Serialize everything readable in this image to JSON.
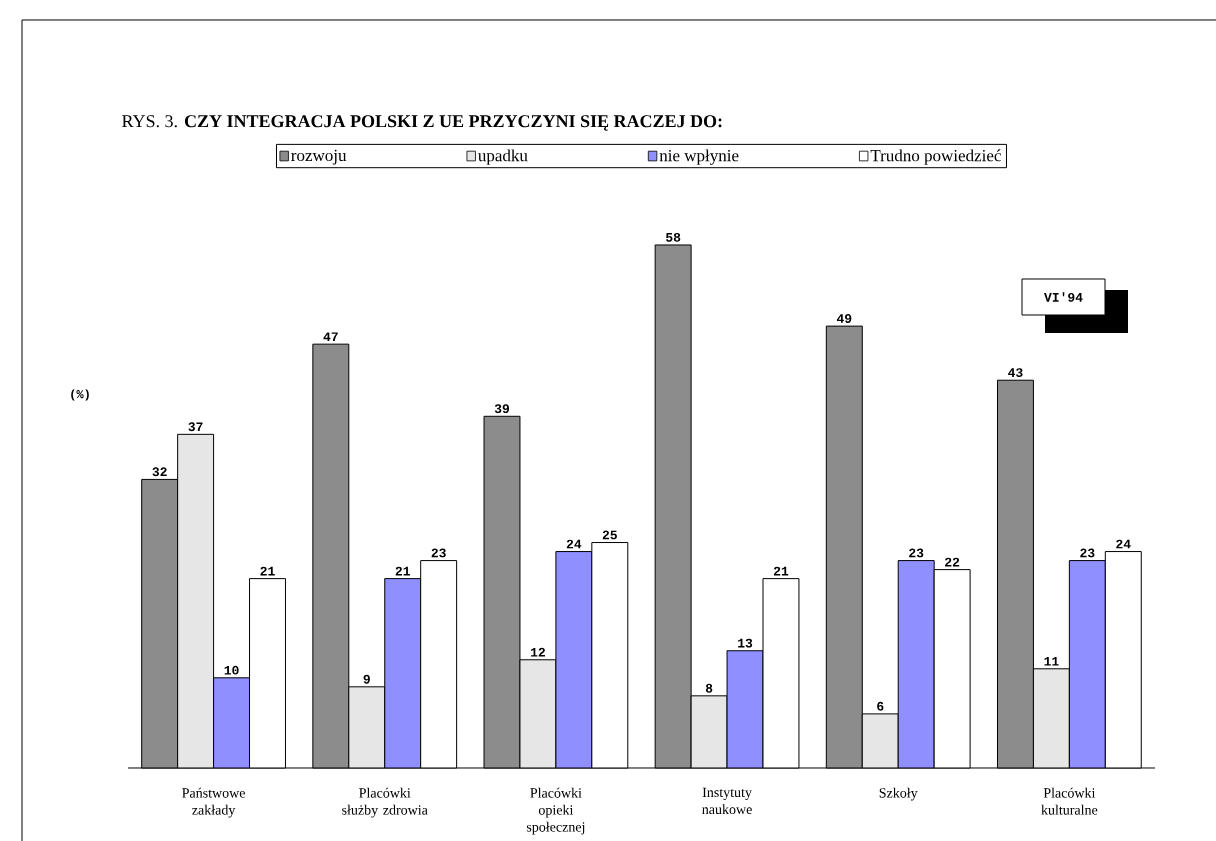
{
  "chart_data": {
    "type": "bar",
    "title": "RYS. 3. **CZY INTEGRACJA POLSKI Z UE PRZYCZYNI SIĘ RACZEJ DO:**",
    "ylabel": "(%)",
    "categories": [
      "Państwowe zakłady",
      "Placówki służby zdrowia",
      "Placówki opieki społecznej",
      "Instytuty naukowe",
      "Szkoły",
      "Placówki kulturalne"
    ],
    "series": [
      {
        "name": "rozwoju",
        "color": "#8c8c8c",
        "values": [
          32,
          47,
          39,
          58,
          49,
          43
        ]
      },
      {
        "name": "upadku",
        "color": "#e6e6e6",
        "values": [
          37,
          9,
          12,
          8,
          6,
          11
        ]
      },
      {
        "name": "nie wpłynie",
        "color": "#8f8fff",
        "values": [
          10,
          21,
          24,
          13,
          23,
          23
        ]
      },
      {
        "name": "Trudno powiedzieć",
        "color": "#ffffff",
        "values": [
          21,
          23,
          25,
          21,
          22,
          24
        ]
      }
    ],
    "annotations": [
      "VI'94"
    ],
    "data_labels": true,
    "legend": "top",
    "tick_labels": "x"
  }
}
